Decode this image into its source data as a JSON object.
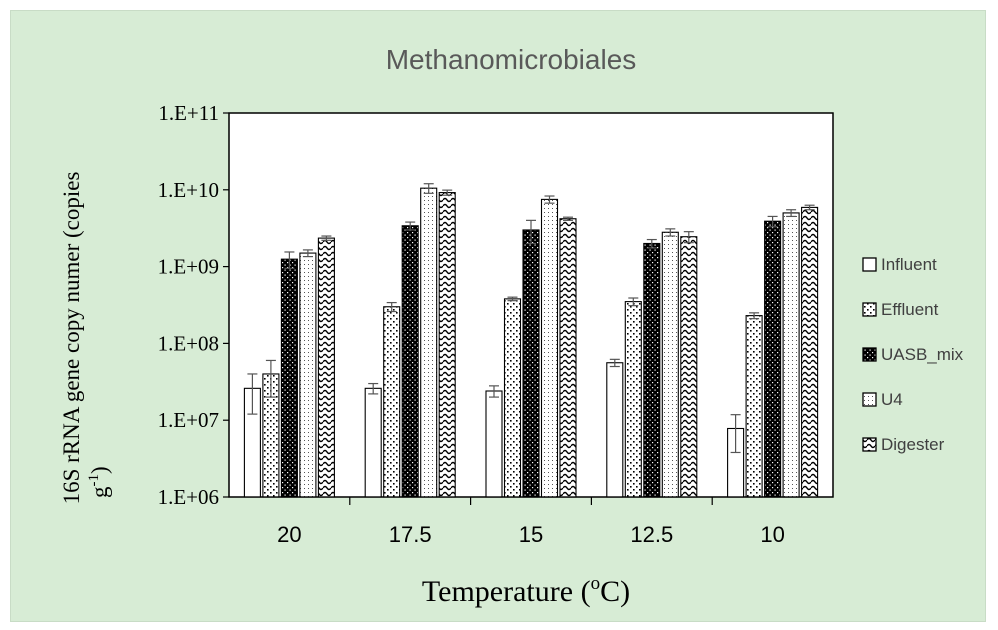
{
  "chart_data": {
    "type": "bar",
    "title": "Methanomicrobiales",
    "xlabel_text": "Temperature (",
    "xlabel_sup": "o",
    "xlabel_end": "C)",
    "ylabel_line1": "16S rRNA gene copy numer (copies",
    "ylabel_line2_text": "g",
    "ylabel_line2_sup": "-1",
    "ylabel_line2_end": ")",
    "yscale": "log",
    "ylim": [
      1000000,
      100000000000
    ],
    "yticks": [
      1000000,
      10000000,
      100000000,
      1000000000,
      10000000000,
      100000000000
    ],
    "ytick_labels": [
      "1.E+06",
      "1.E+07",
      "1.E+08",
      "1.E+09",
      "1.E+10",
      "1.E+11"
    ],
    "categories": [
      "20",
      "17.5",
      "15",
      "12.5",
      "10"
    ],
    "legend_position": "right",
    "grid": false,
    "series": [
      {
        "name": "Influent",
        "pattern": "white",
        "values": [
          26000000,
          26000000,
          24000000,
          56000000,
          7800000
        ],
        "err": [
          14000000,
          4000000,
          4000000,
          6000000,
          4000000
        ]
      },
      {
        "name": "Effluent",
        "pattern": "sparse-dots",
        "values": [
          40000000,
          300000000,
          380000000,
          350000000,
          230000000
        ],
        "err": [
          20000000,
          40000000,
          20000000,
          40000000,
          20000000
        ]
      },
      {
        "name": "UASB_mix",
        "pattern": "black-dots",
        "values": [
          1250000000,
          3400000000,
          3000000000,
          2000000000,
          3900000000
        ],
        "err": [
          300000000,
          400000000,
          1000000000,
          250000000,
          600000000
        ]
      },
      {
        "name": "U4",
        "pattern": "fine-dots",
        "values": [
          1500000000,
          10500000000,
          7500000000,
          2800000000,
          5000000000
        ],
        "err": [
          150000000,
          1500000000,
          800000000,
          300000000,
          500000000
        ]
      },
      {
        "name": "Digester",
        "pattern": "waves",
        "values": [
          2350000000,
          9200000000,
          4200000000,
          2450000000,
          5900000000
        ],
        "err": [
          150000000,
          700000000,
          200000000,
          400000000,
          400000000
        ]
      }
    ]
  }
}
